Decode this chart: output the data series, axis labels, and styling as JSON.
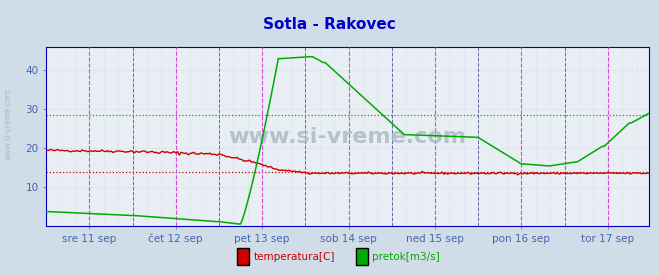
{
  "title": "Sotla - Rakovec",
  "title_color": "#0000cc",
  "title_fontsize": 11,
  "bg_color": "#d0dce8",
  "plot_bg_color": "#e8eef4",
  "ylim": [
    0,
    46
  ],
  "yticks": [
    10,
    20,
    30,
    40
  ],
  "x_day_labels": [
    "sre 11 sep",
    "čet 12 sep",
    "pet 13 sep",
    "sob 14 sep",
    "ned 15 sep",
    "pon 16 sep",
    "tor 17 sep"
  ],
  "x_day_positions": [
    24,
    72,
    120,
    168,
    216,
    264,
    312
  ],
  "total_points": 336,
  "hline_temp_avg": 14.0,
  "hline_flow_avg": 28.5,
  "temp_color": "#cc0000",
  "flow_color": "#00aa00",
  "grid_color_h": "#c8d4e0",
  "grid_color_v": "#c8d4e0",
  "vline_day_color": "#dd44dd",
  "vline_midnight_color": "#6666aa",
  "vline_midnight_positions": [
    48,
    96,
    144,
    192,
    240,
    288
  ],
  "vline_noon_positions": [
    24,
    72,
    120,
    168,
    216,
    264,
    312
  ],
  "watermark": "www.si-vreme.com",
  "watermark_color": "#aabbc8",
  "left_text": "www.si-vreme.com",
  "legend_labels": [
    "temperatura[C]",
    "pretok[m3/s]"
  ],
  "legend_colors": [
    "#cc0000",
    "#00aa00"
  ],
  "border_color": "#8899aa",
  "axis_label_color": "#4466aa",
  "spine_color": "#0000bb"
}
